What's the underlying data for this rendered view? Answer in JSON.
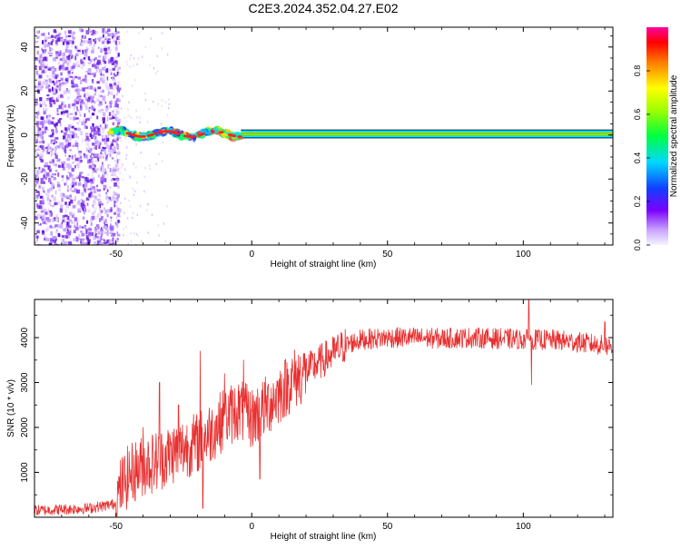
{
  "title": "C2E3.2024.352.04.27.E02",
  "chart_data": [
    {
      "type": "heatmap",
      "xlabel": "Height of straight line (km)",
      "ylabel": "Frequency (Hz)",
      "xlim": [
        -80,
        133
      ],
      "ylim": [
        -50,
        49
      ],
      "xticks": [
        -50,
        0,
        50,
        100
      ],
      "xtick_labels": [
        "-50",
        "0",
        "50",
        "100"
      ],
      "yticks": [
        -40,
        -20,
        0,
        20,
        40
      ],
      "ytick_labels": [
        "-40",
        "-20",
        "0",
        "20",
        "40"
      ],
      "colorbar": {
        "label": "Normalized spectral amplitude",
        "range": [
          0,
          1
        ],
        "ticks": [
          0.0,
          0.2,
          0.4,
          0.6,
          0.8
        ],
        "tick_labels": [
          "0.0",
          "0.2",
          "0.4",
          "0.6",
          "0.8"
        ]
      },
      "features": {
        "noise_region_x": [
          -80,
          -50
        ],
        "carrier_frequency": 0.5,
        "carrier_band_x": [
          -50,
          133
        ]
      },
      "grid": false
    },
    {
      "type": "line",
      "xlabel": "Height of straight line (km)",
      "ylabel": "SNR (10 * v/v)",
      "xlim": [
        -80,
        133
      ],
      "ylim": [
        0,
        4850
      ],
      "xticks": [
        -50,
        0,
        50,
        100
      ],
      "xtick_labels": [
        "-50",
        "0",
        "50",
        "100"
      ],
      "yticks": [
        1000,
        2000,
        3000,
        4000
      ],
      "ytick_labels": [
        "1000",
        "2000",
        "3000",
        "4000"
      ],
      "color": "#e83030",
      "grid": false,
      "trend": {
        "x": [
          -80,
          -60,
          -50,
          -48,
          -45,
          -40,
          -35,
          -30,
          -25,
          -20,
          -15,
          -10,
          -5,
          0,
          5,
          10,
          15,
          20,
          25,
          30,
          35,
          40,
          50,
          60,
          70,
          80,
          90,
          100,
          110,
          120,
          133
        ],
        "y": [
          150,
          200,
          300,
          700,
          950,
          1150,
          1250,
          1400,
          1550,
          1650,
          1900,
          2200,
          2400,
          2200,
          2450,
          2750,
          3050,
          3250,
          3450,
          3650,
          3850,
          3950,
          4000,
          4000,
          3980,
          4000,
          3980,
          3960,
          3950,
          3900,
          3800
        ]
      },
      "spikes": [
        {
          "x": -40,
          "y": 2000
        },
        {
          "x": -34,
          "y": 3000
        },
        {
          "x": -27,
          "y": 2500
        },
        {
          "x": -19,
          "y": 3700
        },
        {
          "x": -18,
          "y": 200
        },
        {
          "x": -10,
          "y": 3200
        },
        {
          "x": -3,
          "y": 3500
        },
        {
          "x": 3,
          "y": 850
        },
        {
          "x": 102,
          "y": 4850
        },
        {
          "x": 103,
          "y": 2950
        },
        {
          "x": 130,
          "y": 4350
        }
      ]
    }
  ]
}
